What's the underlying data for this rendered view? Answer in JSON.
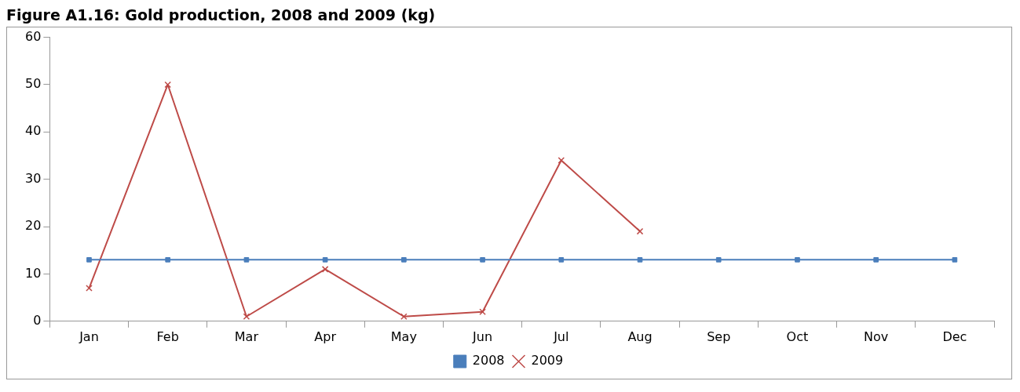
{
  "chart_data": {
    "type": "line",
    "title": "Figure A1.16: Gold production, 2008 and 2009 (kg)",
    "categories": [
      "Jan",
      "Feb",
      "Mar",
      "Apr",
      "May",
      "Jun",
      "Jul",
      "Aug",
      "Sep",
      "Oct",
      "Nov",
      "Dec"
    ],
    "series": [
      {
        "name": "2008",
        "color": "#4a7ebb",
        "marker": "square",
        "values": [
          13,
          13,
          13,
          13,
          13,
          13,
          13,
          13,
          13,
          13,
          13,
          13
        ]
      },
      {
        "name": "2009",
        "color": "#be4b48",
        "marker": "cross",
        "values": [
          7,
          50,
          1,
          11,
          1,
          2,
          34,
          19,
          null,
          null,
          null,
          null
        ]
      }
    ],
    "ylim": [
      0,
      60
    ],
    "yticks": [
      0,
      10,
      20,
      30,
      40,
      50,
      60
    ],
    "grid": false,
    "legend": "bottom"
  }
}
